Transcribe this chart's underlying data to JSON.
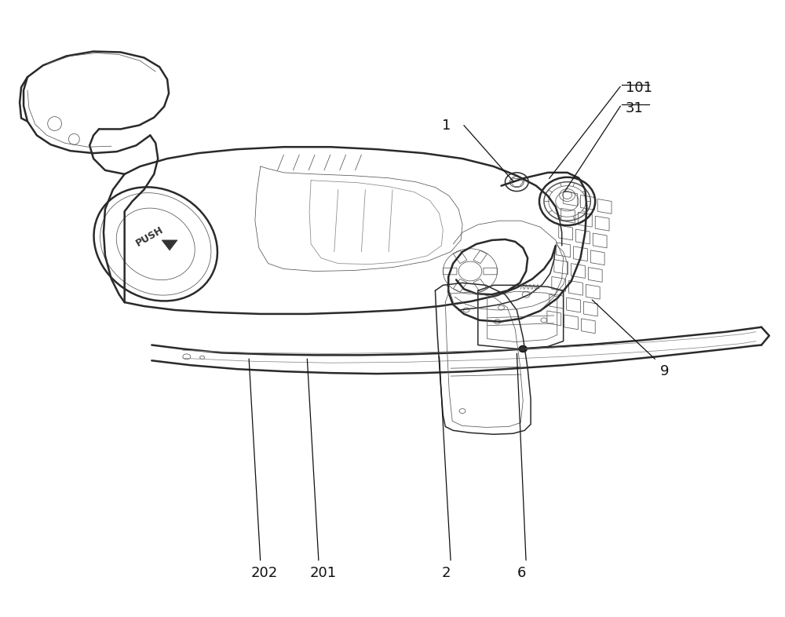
{
  "figure_width": 10.0,
  "figure_height": 7.86,
  "dpi": 100,
  "bg": "#ffffff",
  "lc_dark": "#2a2a2a",
  "lc_med": "#555555",
  "lc_light": "#888888",
  "lw_thick": 1.8,
  "lw_med": 1.1,
  "lw_thin": 0.55,
  "label_fs": 13,
  "label_color": "#111111"
}
